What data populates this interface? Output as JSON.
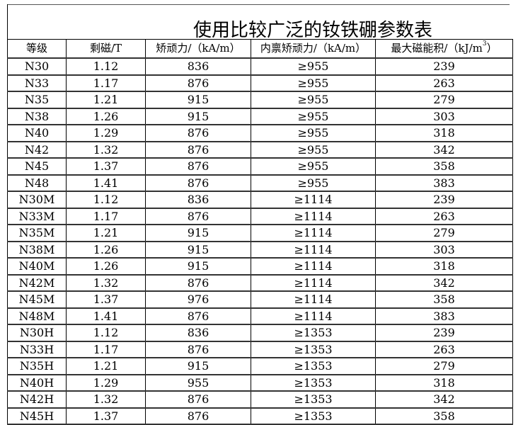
{
  "title": "使用比较广泛的钕铁硼参数表",
  "columns": [
    "等级",
    "剩磁/T",
    "矫顽力/（kA/m）",
    "内禀矫顽力/（kA/m）",
    "最大磁能积/（kJ/m",
    "3",
    "）"
  ],
  "rows": [
    [
      "N30",
      "1.12",
      "836",
      "≥955",
      "239"
    ],
    [
      "N33",
      "1.17",
      "876",
      "≥955",
      "263"
    ],
    [
      "N35",
      "1.21",
      "915",
      "≥955",
      "279"
    ],
    [
      "N38",
      "1.26",
      "915",
      "≥955",
      "303"
    ],
    [
      "N40",
      "1.29",
      "876",
      "≥955",
      "318"
    ],
    [
      "N42",
      "1.32",
      "876",
      "≥955",
      "342"
    ],
    [
      "N45",
      "1.37",
      "876",
      "≥955",
      "358"
    ],
    [
      "N48",
      "1.41",
      "876",
      "≥955",
      "383"
    ],
    [
      "N30M",
      "1.12",
      "836",
      "≥1114",
      "239"
    ],
    [
      "N33M",
      "1.17",
      "876",
      "≥1114",
      "263"
    ],
    [
      "N35M",
      "1.21",
      "915",
      "≥1114",
      "279"
    ],
    [
      "N38M",
      "1.26",
      "915",
      "≥1114",
      "303"
    ],
    [
      "N40M",
      "1.26",
      "915",
      "≥1114",
      "318"
    ],
    [
      "N42M",
      "1.32",
      "876",
      "≥1114",
      "342"
    ],
    [
      "N45M",
      "1.37",
      "976",
      "≥1114",
      "358"
    ],
    [
      "N48M",
      "1.41",
      "876",
      "≥1114",
      "383"
    ],
    [
      "N30H",
      "1.12",
      "836",
      "≥1353",
      "239"
    ],
    [
      "N33H",
      "1.17",
      "876",
      "≥1353",
      "263"
    ],
    [
      "N35H",
      "1.21",
      "915",
      "≥1353",
      "279"
    ],
    [
      "N40H",
      "1.29",
      "955",
      "≥1353",
      "318"
    ],
    [
      "N42H",
      "1.32",
      "876",
      "≥1353",
      "342"
    ],
    [
      "N45H",
      "1.37",
      "876",
      "≥1353",
      "358"
    ]
  ]
}
